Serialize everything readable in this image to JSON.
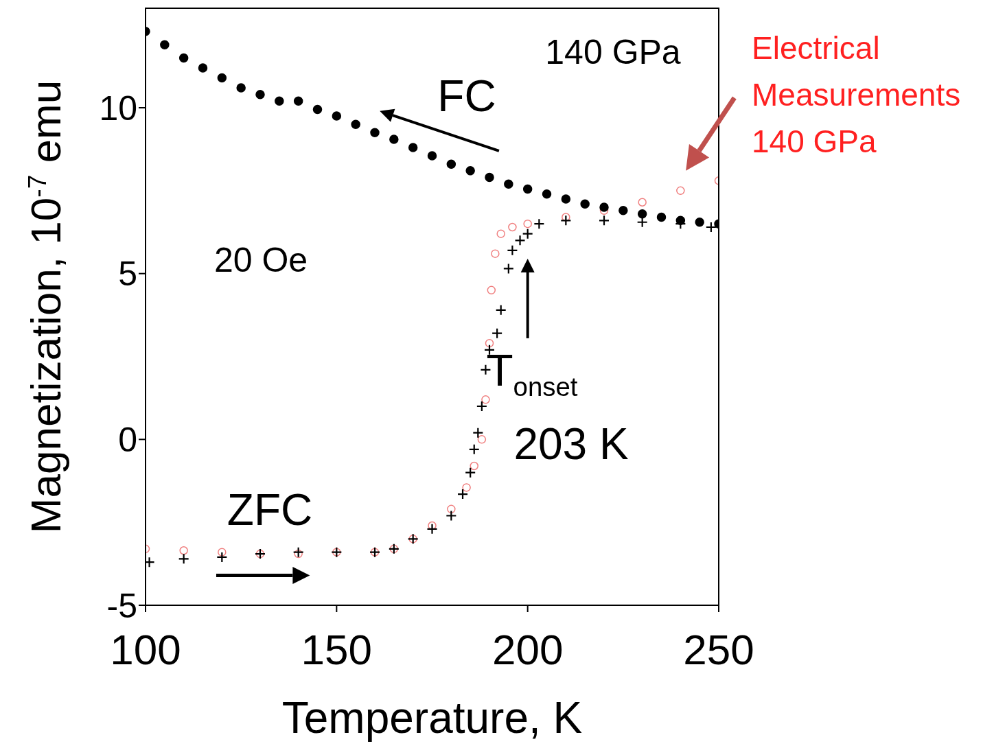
{
  "chart_data": {
    "type": "scatter",
    "xlabel": "Temperature, K",
    "ylabel": "Magnetization, 10$^{-7}$ emu",
    "xlim": [
      100,
      250
    ],
    "xticks": [
      100,
      150,
      200,
      250
    ],
    "ylim": [
      -5,
      13
    ],
    "yticks": [
      -5,
      0,
      5,
      10
    ],
    "grid": false,
    "series": [
      {
        "name": null,
        "color": "#000000",
        "marker": "circle",
        "x": [
          100,
          105,
          110,
          115,
          120,
          125,
          130,
          135,
          140,
          145,
          150,
          155,
          160,
          165,
          170,
          175,
          180,
          185,
          190,
          195,
          200,
          205,
          210,
          215,
          220,
          225,
          230,
          235,
          240,
          245,
          250
        ],
        "values": [
          12.3,
          11.9,
          11.5,
          11.2,
          10.9,
          10.6,
          10.4,
          10.2,
          10.2,
          9.95,
          9.75,
          9.5,
          9.25,
          9.05,
          8.8,
          8.55,
          8.3,
          8.1,
          7.9,
          7.7,
          7.55,
          7.4,
          7.25,
          7.1,
          7.0,
          6.9,
          6.8,
          6.7,
          6.6,
          6.55,
          6.5
        ]
      },
      {
        "name": null,
        "color": "#000000",
        "marker": "cross",
        "x": [
          101,
          110,
          120,
          130,
          140,
          150,
          160,
          165,
          170,
          175,
          180,
          183,
          185,
          186,
          187,
          188,
          189,
          190,
          192,
          193,
          195,
          196,
          198,
          200,
          203,
          210,
          220,
          230,
          240,
          248
        ],
        "values": [
          -3.7,
          -3.6,
          -3.55,
          -3.45,
          -3.4,
          -3.4,
          -3.4,
          -3.3,
          -3.0,
          -2.7,
          -2.3,
          -1.65,
          -1.0,
          -0.3,
          0.2,
          1.0,
          2.1,
          2.7,
          3.2,
          3.9,
          5.15,
          5.7,
          6.0,
          6.2,
          6.5,
          6.6,
          6.6,
          6.55,
          6.5,
          6.4
        ]
      },
      {
        "name": null,
        "color": "#f08080",
        "marker": "circle",
        "x": [
          100,
          110,
          120,
          130,
          140,
          150,
          160,
          165,
          170,
          175,
          180,
          184,
          186,
          188,
          189,
          190,
          190.5,
          191.5,
          193,
          196,
          200,
          210,
          220,
          230,
          240,
          250
        ],
        "values": [
          -3.3,
          -3.35,
          -3.4,
          -3.45,
          -3.45,
          -3.4,
          -3.4,
          -3.3,
          -3.0,
          -2.6,
          -2.1,
          -1.45,
          -0.8,
          0,
          1.2,
          2.9,
          4.5,
          5.6,
          6.2,
          6.4,
          6.5,
          6.7,
          6.9,
          7.15,
          7.5,
          7.8
        ]
      }
    ],
    "annotations": [
      "140 GPa",
      "FC",
      "20 Oe",
      "ZFC",
      "T$_{onset}$",
      "203 K",
      "Electrical Measurements 140 GPa"
    ]
  }
}
